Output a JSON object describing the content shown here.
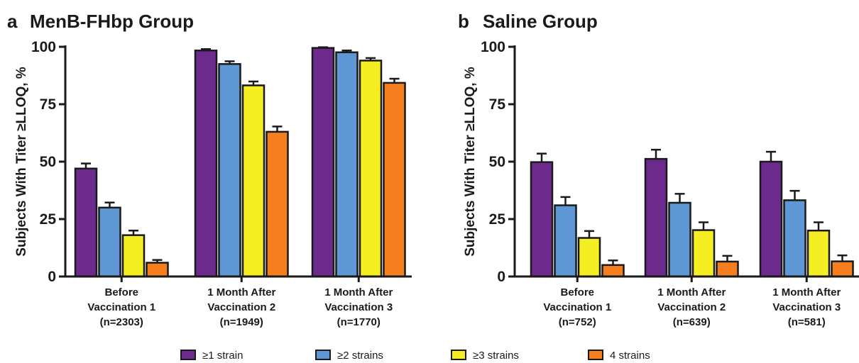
{
  "colors": {
    "s1": "#6b2a8c",
    "s2": "#5e97d3",
    "s3": "#f4ee22",
    "s4": "#f57e1e"
  },
  "legend": [
    {
      "key": "s1",
      "label": "≥1 strain"
    },
    {
      "key": "s2",
      "label": "≥2 strains"
    },
    {
      "key": "s3",
      "label": "≥3 strains"
    },
    {
      "key": "s4",
      "label": "4 strains"
    }
  ],
  "chart_data": [
    {
      "type": "bar",
      "panel": "a",
      "title": "MenB-FHbp Group",
      "ylabel": "Subjects With Titer ≥LLOQ, %",
      "ylim": [
        0,
        100
      ],
      "yticks": [
        0,
        25,
        50,
        75,
        100
      ],
      "categories": [
        [
          "Before",
          "Vaccination 1",
          "(n=2303)"
        ],
        [
          "1 Month After",
          "Vaccination 2",
          "(n=1949)"
        ],
        [
          "1 Month After",
          "Vaccination 3",
          "(n=1770)"
        ]
      ],
      "series": [
        {
          "name": "≥1 strain",
          "key": "s1",
          "values": [
            47,
            98.4,
            99.5
          ],
          "err_upper": [
            49.2,
            99.0,
            99.8
          ]
        },
        {
          "name": "≥2 strains",
          "key": "s2",
          "values": [
            30,
            92.5,
            97.6
          ],
          "err_upper": [
            32.2,
            93.7,
            98.4
          ]
        },
        {
          "name": "≥3 strains",
          "key": "s3",
          "values": [
            18,
            83.2,
            94.0
          ],
          "err_upper": [
            20.0,
            84.9,
            95.1
          ]
        },
        {
          "name": "4 strains",
          "key": "s4",
          "values": [
            6,
            63.0,
            84.3
          ],
          "err_upper": [
            7.2,
            65.3,
            86.1
          ]
        }
      ]
    },
    {
      "type": "bar",
      "panel": "b",
      "title": "Saline Group",
      "ylabel": "Subjects With Titer ≥LLOQ, %",
      "ylim": [
        0,
        100
      ],
      "yticks": [
        0,
        25,
        50,
        75,
        100
      ],
      "categories": [
        [
          "Before",
          "Vaccination 1",
          "(n=752)"
        ],
        [
          "1 Month After",
          "Vaccination 2",
          "(n=639)"
        ],
        [
          "1 Month After",
          "Vaccination 3",
          "(n=581)"
        ]
      ],
      "series": [
        {
          "name": "≥1 strain",
          "key": "s1",
          "values": [
            49.8,
            51.2,
            50.0
          ],
          "err_upper": [
            53.5,
            55.2,
            54.3
          ]
        },
        {
          "name": "≥2 strains",
          "key": "s2",
          "values": [
            31.0,
            32.1,
            33.2
          ],
          "err_upper": [
            34.6,
            36.0,
            37.3
          ]
        },
        {
          "name": "≥3 strains",
          "key": "s3",
          "values": [
            16.8,
            20.2,
            20.0
          ],
          "err_upper": [
            19.8,
            23.6,
            23.6
          ]
        },
        {
          "name": "4 strains",
          "key": "s4",
          "values": [
            5.0,
            6.5,
            6.6
          ],
          "err_upper": [
            7.0,
            9.0,
            9.2
          ]
        }
      ]
    }
  ]
}
